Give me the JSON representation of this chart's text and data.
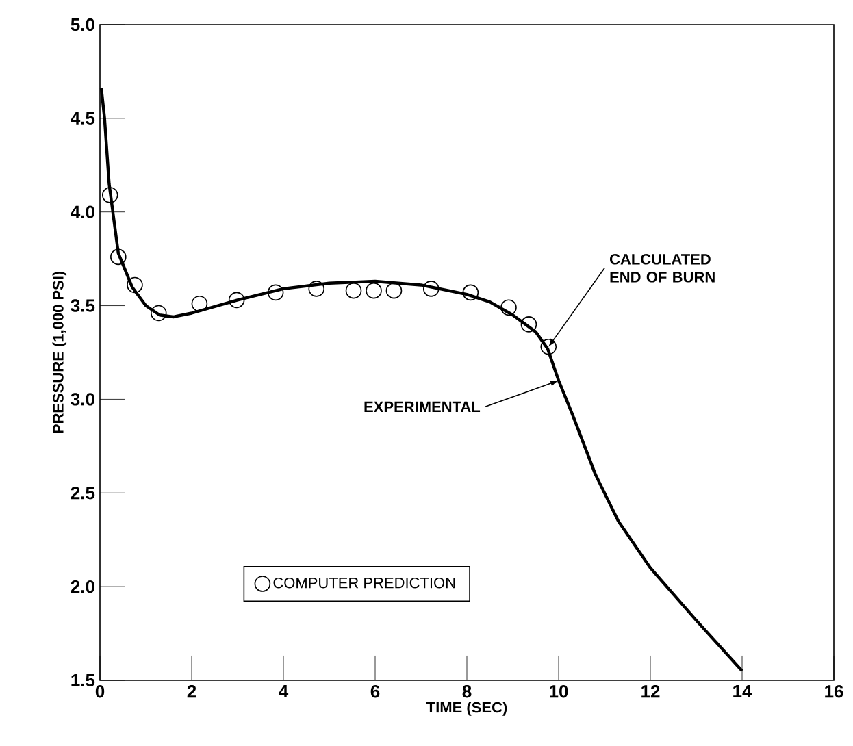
{
  "chart_data": {
    "type": "line",
    "xlabel": "TIME (SEC)",
    "ylabel": "PRESSURE (1,000 PSI)",
    "xlim": [
      0,
      16
    ],
    "xticks": [
      0,
      2,
      4,
      6,
      8,
      10,
      12,
      14,
      16
    ],
    "ylim": [
      1.5,
      5.0
    ],
    "yticks": [
      {
        "value": 1.5,
        "label": "1.5"
      },
      {
        "value": 2.0,
        "label": "2.0"
      },
      {
        "value": 2.5,
        "label": "2.5"
      },
      {
        "value": 3.0,
        "label": "3.0"
      },
      {
        "value": 3.5,
        "label": "3.5"
      },
      {
        "value": 4.0,
        "label": "4.0"
      },
      {
        "value": 4.5,
        "label": "4.5"
      },
      {
        "value": 5.0,
        "label": "5.0"
      }
    ],
    "grid": false,
    "legend": "bottom",
    "annotations": [
      {
        "text": "CALCULATED END OF BURN",
        "x": 9.78,
        "y": 3.28
      },
      {
        "text": "EXPERIMENTAL",
        "x": 10.0,
        "y": 3.1
      }
    ],
    "series": [
      {
        "color": "#000000",
        "marker": "none",
        "x": [
          0.03,
          0.1,
          0.2,
          0.4,
          0.7,
          1.0,
          1.3,
          1.6,
          2.0,
          3.0,
          4.0,
          5.0,
          6.0,
          7.0,
          8.0,
          8.5,
          9.0,
          9.5,
          9.76,
          10.0,
          10.3,
          10.8,
          11.3,
          12.0,
          13.0,
          14.0
        ],
        "values": [
          4.66,
          4.5,
          4.15,
          3.78,
          3.6,
          3.5,
          3.45,
          3.44,
          3.46,
          3.53,
          3.59,
          3.62,
          3.63,
          3.61,
          3.56,
          3.52,
          3.45,
          3.36,
          3.27,
          3.1,
          2.92,
          2.6,
          2.35,
          2.1,
          1.82,
          1.55
        ]
      },
      {
        "name": "COMPUTER PREDICTION",
        "type": "scatter",
        "color": "#000000",
        "marker": "circle",
        "x": [
          0.22,
          0.4,
          0.76,
          1.28,
          2.17,
          2.98,
          3.83,
          4.72,
          5.53,
          5.97,
          6.41,
          7.22,
          8.08,
          8.91,
          9.35,
          9.78
        ],
        "values": [
          4.09,
          3.76,
          3.61,
          3.46,
          3.51,
          3.53,
          3.57,
          3.59,
          3.58,
          3.58,
          3.58,
          3.59,
          3.57,
          3.49,
          3.4,
          3.28
        ]
      }
    ]
  }
}
